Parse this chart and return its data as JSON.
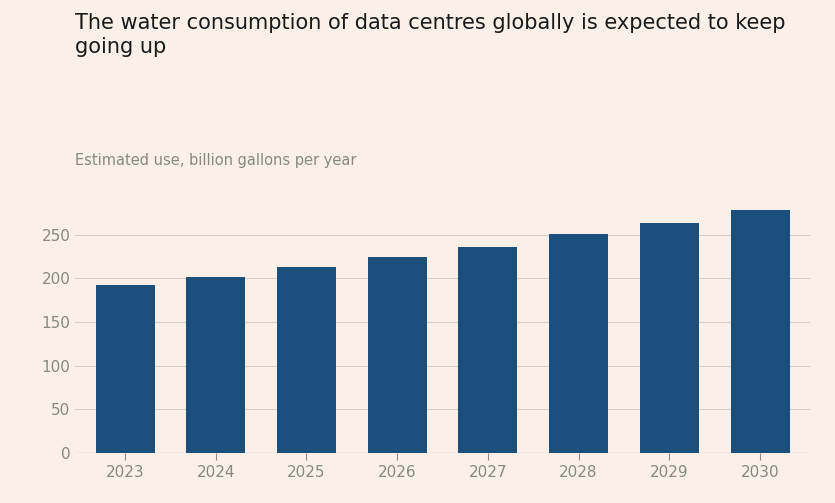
{
  "title_line1": "The water consumption of data centres globally is expected to keep",
  "title_line2": "going up",
  "subtitle": "Estimated use, billion gallons per year",
  "categories": [
    2023,
    2024,
    2025,
    2026,
    2027,
    2028,
    2029,
    2030
  ],
  "values": [
    192,
    202,
    213,
    225,
    236,
    251,
    263,
    278
  ],
  "bar_color": "#1d4f7c",
  "background_color": "#faf0e8",
  "yticks": [
    0,
    50,
    100,
    150,
    200,
    250
  ],
  "ylim": [
    0,
    300
  ],
  "title_fontsize": 15,
  "subtitle_fontsize": 10.5,
  "tick_fontsize": 11,
  "tick_color": "#888880",
  "grid_color": "#d8cfc6",
  "bar_width": 0.65
}
